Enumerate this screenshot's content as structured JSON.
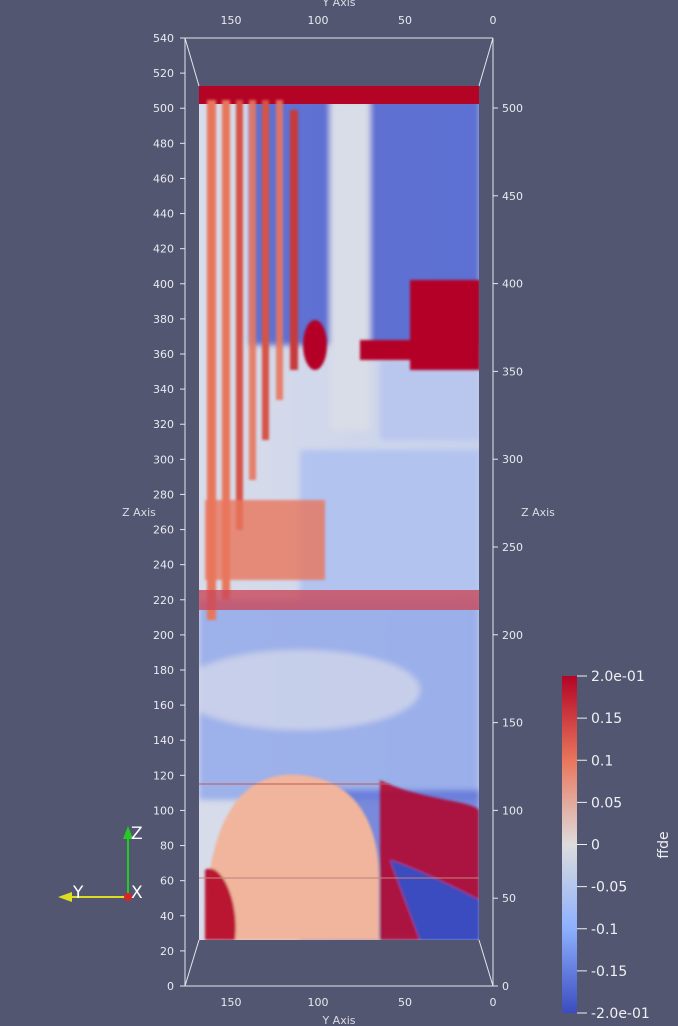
{
  "scene": {
    "background": "#525671",
    "top_axis": {
      "title": "Y Axis",
      "ticks": [
        "150",
        "100",
        "50",
        "0"
      ]
    },
    "bottom_axis": {
      "title": "Y Axis",
      "ticks": [
        "150",
        "100",
        "50",
        "0"
      ]
    },
    "left_axis": {
      "title": "Z Axis",
      "ticks": [
        "540",
        "520",
        "500",
        "480",
        "460",
        "440",
        "420",
        "400",
        "380",
        "360",
        "340",
        "320",
        "300",
        "280",
        "260",
        "240",
        "220",
        "200",
        "180",
        "160",
        "140",
        "120",
        "100",
        "80",
        "60",
        "40",
        "20",
        "0"
      ]
    },
    "right_axis": {
      "title": "Z Axis",
      "ticks": [
        "500",
        "450",
        "400",
        "350",
        "300",
        "250",
        "200",
        "150",
        "100",
        "50",
        "0"
      ]
    }
  },
  "colorbar": {
    "title": "ffde",
    "labels": [
      "2.0e-01",
      "0.15",
      "0.1",
      "0.05",
      "0",
      "-0.05",
      "-0.1",
      "-0.15",
      "-2.0e-01"
    ],
    "colors": {
      "high": "#b40426",
      "mid": "#dddcdc",
      "low": "#3b4cc0"
    }
  },
  "orientation_axes": {
    "z": {
      "label": "Z",
      "color": "#22cc22"
    },
    "y": {
      "label": "Y",
      "color": "#dddd22"
    },
    "x": {
      "label": "X",
      "color": "#dd2222"
    }
  }
}
